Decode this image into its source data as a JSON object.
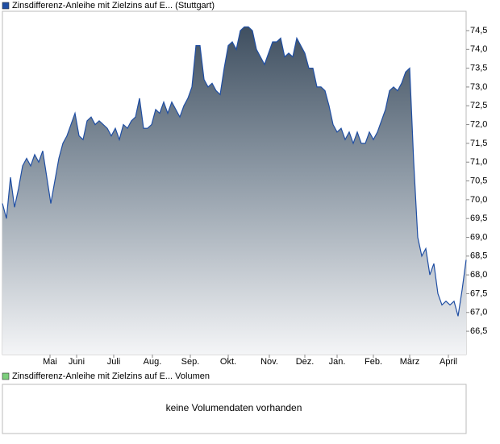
{
  "chart_data": [
    {
      "type": "area",
      "series": [
        {
          "name": "Zinsdifferenz-Anleihe mit Zielzins auf E... (Stuttgart)",
          "color": "#1f4ea3",
          "values": [
            69.9,
            69.5,
            70.6,
            69.8,
            70.3,
            70.9,
            71.1,
            70.9,
            71.2,
            71.0,
            71.3,
            70.6,
            69.9,
            70.5,
            71.1,
            71.5,
            71.7,
            72.0,
            72.3,
            71.7,
            71.6,
            72.1,
            72.2,
            72.0,
            72.1,
            72.0,
            71.9,
            71.7,
            71.9,
            71.6,
            72.0,
            71.9,
            72.1,
            72.2,
            72.7,
            71.9,
            71.9,
            72.0,
            72.4,
            72.3,
            72.6,
            72.3,
            72.6,
            72.4,
            72.2,
            72.5,
            72.7,
            73.0,
            74.1,
            74.1,
            73.2,
            73.0,
            73.1,
            72.9,
            72.8,
            73.5,
            74.1,
            74.2,
            74.0,
            74.5,
            74.6,
            74.6,
            74.5,
            74.0,
            73.8,
            73.6,
            73.9,
            74.2,
            74.2,
            74.3,
            73.8,
            73.9,
            73.8,
            74.3,
            74.1,
            73.9,
            73.5,
            73.5,
            73.0,
            73.0,
            72.9,
            72.5,
            72.0,
            71.8,
            71.9,
            71.6,
            71.8,
            71.5,
            71.8,
            71.5,
            71.5,
            71.8,
            71.6,
            71.8,
            72.1,
            72.4,
            72.9,
            73.0,
            72.9,
            73.1,
            73.4,
            73.5,
            71.0,
            69.0,
            68.5,
            68.7,
            68.0,
            68.3,
            67.5,
            67.2,
            67.3,
            67.2,
            67.3,
            66.9,
            67.6,
            68.4
          ]
        }
      ],
      "xticks": [
        {
          "value": 11.8,
          "label": "Mai"
        },
        {
          "value": 18.4,
          "label": "Juni"
        },
        {
          "value": 27.6,
          "label": "Juli"
        },
        {
          "value": 37.2,
          "label": "Aug."
        },
        {
          "value": 46.6,
          "label": "Sep."
        },
        {
          "value": 56,
          "label": "Okt."
        },
        {
          "value": 66.2,
          "label": "Nov."
        },
        {
          "value": 75,
          "label": "Dez."
        },
        {
          "value": 83,
          "label": "Jan."
        },
        {
          "value": 92,
          "label": "Feb."
        },
        {
          "value": 101,
          "label": "März"
        },
        {
          "value": 110.6,
          "label": "April"
        }
      ],
      "xlim": [
        0,
        115
      ],
      "ylim": [
        65.88,
        75.25
      ],
      "yticks": [
        {
          "value": 66.5,
          "label": "66,5"
        },
        {
          "value": 67,
          "label": "67,0"
        },
        {
          "value": 67.5,
          "label": "67,5"
        },
        {
          "value": 68,
          "label": "68,0"
        },
        {
          "value": 68.5,
          "label": "68,5"
        },
        {
          "value": 69,
          "label": "69,0"
        },
        {
          "value": 69.5,
          "label": "69,5"
        },
        {
          "value": 70,
          "label": "70,0"
        },
        {
          "value": 70.5,
          "label": "70,5"
        },
        {
          "value": 71,
          "label": "71,0"
        },
        {
          "value": 71.5,
          "label": "71,5"
        },
        {
          "value": 72,
          "label": "72,0"
        },
        {
          "value": 72.5,
          "label": "72,5"
        },
        {
          "value": 73,
          "label": "73,0"
        },
        {
          "value": 73.5,
          "label": "73,5"
        },
        {
          "value": 74,
          "label": "74,0"
        },
        {
          "value": 74.5,
          "label": "74,5"
        }
      ]
    },
    {
      "type": "bar",
      "series": [
        {
          "name": "Zinsdifferenz-Anleihe mit Zielzins auf E... Volumen",
          "color": "#7ccf7c"
        }
      ],
      "annotation": "keine Volumendaten vorhanden"
    }
  ]
}
